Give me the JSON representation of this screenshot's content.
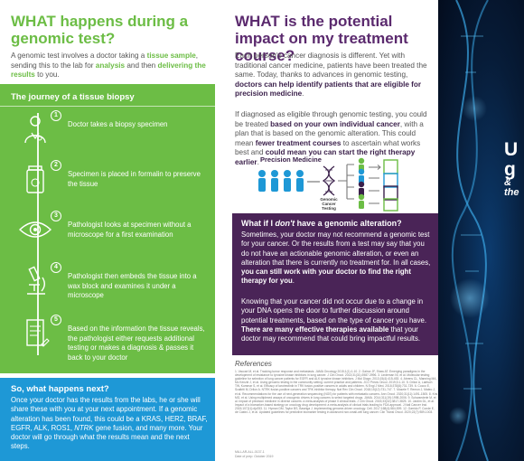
{
  "left": {
    "title": "WHAT happens during a genomic test?",
    "intro": {
      "t1": "A genomic test involves a doctor taking a ",
      "h1": "tissue sample",
      "t2": ", sending this to the lab for ",
      "h2": "analysis",
      "t3": " and then ",
      "h3": "delivering the results",
      "t4": " to you."
    },
    "journey": {
      "title": "The journey of a tissue biopsy",
      "steps": [
        {
          "num": "1",
          "text": "Doctor takes a biopsy specimen"
        },
        {
          "num": "2",
          "text": "Specimen is placed in formalin to preserve the tissue"
        },
        {
          "num": "3",
          "text": "Pathologist looks at specimen without a microscope for a first examination"
        },
        {
          "num": "4",
          "text": "Pathologist then embeds the tissue into a wax block and examines it under a microscope"
        },
        {
          "num": "5",
          "text": "Based on the information the tissue reveals, the pathologist either requests additional testing or makes a diagnosis & passes it back to your doctor"
        }
      ]
    },
    "next": {
      "title": "So, what happens next?",
      "t1": "Once your doctor has the results from the labs, he or she will share these with you at your next appointment. If a genomic alteration has been found, this could be a KRAS, HER2, BRAF, EGFR, ALK, ROS1, ",
      "italic": "NTRK",
      "t2": " gene fusion, and many more. Your doctor will go through what the results mean and the next steps."
    }
  },
  "right": {
    "title": "WHAT is the potential impact on my treatment course?",
    "para1": {
      "t1": "Each person's cancer diagnosis is different. Yet with traditional cancer medicine, patients have been treated the same. Today, thanks to advances in genomic testing, ",
      "b1": "doctors can help identify patients that are eligible for precision medicine",
      "t2": "."
    },
    "para2": {
      "t1": "If diagnosed as eligible through genomic testing, you could be treated ",
      "b1": "based on your own individual cancer",
      "t2": ", with a plan that is based on the genomic alteration. This could mean ",
      "b2": "fewer treatment courses",
      "t3": " to ascertain what works best and ",
      "b3": "could mean you can start the right therapy earlier",
      "t4": "."
    },
    "graphic": {
      "label": "Precision Medicine",
      "center_line1": "Genomic",
      "center_line2": "Cancer",
      "center_line3": "Testing"
    },
    "alt": {
      "title_a": "What if I ",
      "title_em": "don't",
      "title_b": " have a genomic alteration?",
      "p1_t1": "Sometimes, your doctor may not recommend a genomic test for your cancer. Or the results from a test may say that you do not have an actionable genomic alteration, or even an alteration that there is currently no treatment for. In all cases, ",
      "p1_b1": "you can still work with your doctor to find the right therapy for you",
      "p1_t2": ".",
      "p2_t1": "Knowing that your cancer did not occur due to a change in your DNA opens the door to further discussion around potential treatments, based on the type of cancer you have. ",
      "p2_b1": "There are many effective therapies available",
      "p2_t2": " that your doctor may recommend that could bring impactful results."
    },
    "refs": {
      "title": "References",
      "text": "1. Vaccari M, et al. Tracking tumor response and metastasis. JAMA Oncology 2015;1(1):1-10. 2. Gainor JF, Shaw AT. Emerging paradigms in the development of resistance to tyrosine kinase inhibitors in lung cancer. J Clin Oncol. 2013;31(31):3987-3996. 3. Lindeman NI, et al. Molecular testing guideline for selection of lung cancer patients for EGFR and ALK tyrosine kinase inhibitors. J Mol Diagn. 2013;15(4):415-453. 4. Ahrens CL, Manning MA, Mc Kenzie J, et al. Using genomic testing in the community setting: current practice and patterns. JCO Precis Oncol. 2019;3:1-10. 5. Drilon A, Laetsch TW, Kummar S, et al. Efficacy of larotrectinib in TRK fusion-positive cancers in adults and children. N Engl J Med. 2018;378(8):731-739. 6. Cocco E, Scaltriti M, Drilon A. NTRK fusion-positive cancers and TRK inhibitor therapy. Nat Rev Clin Oncol. 2018;15(12):731-747. 7. Mosele F, Remon J, Mateo J, et al. Recommendations for the use of next-generation sequencing (NGS) for patients with metastatic cancers. Ann Oncol. 2020;31(11):1491-1505. 8. Kris MG, et al. Using multiplexed assays of oncogenic drivers in lung cancers to select targeted drugs. JAMA. 2014;311(19):1998-2006. 9. Schwaederle M, et al. Impact of precision medicine in diverse cancers: a meta-analysis of phase II clinical trials. J Clin Oncol. 2015;33(32):3817-3825. 10. Jardim DL, et al. Impact of a biomarker-based strategy on oncology drug development: a meta-analysis of clinical trials leading to FDA approval. J Natl Cancer Inst. 2015;107(11):djv253. 11. Hyman DM, Taylor BS, Baselga J. Implementing genome-driven oncology. Cell. 2017;168(4):584-599. 12. Garrido P, Conde E, de Castro J, et al. Updated guidelines for predictive biomarker testing in advanced non-small-cell lung cancer. Clin Transl Oncol. 2020;22(7):989-1003.",
      "footer1": "MA-LAR-ALL-0137-1",
      "footer2": "Date of prep: October 2019"
    }
  },
  "dark_panel": {
    "big_letters": [
      "U",
      "g",
      "&"
    ],
    "sub": "the"
  },
  "colors": {
    "green": "#6cbd45",
    "blue": "#1e98d6",
    "purple": "#4a2457",
    "title_purple": "#5b2a6e",
    "dark_blue": "#071c38"
  }
}
